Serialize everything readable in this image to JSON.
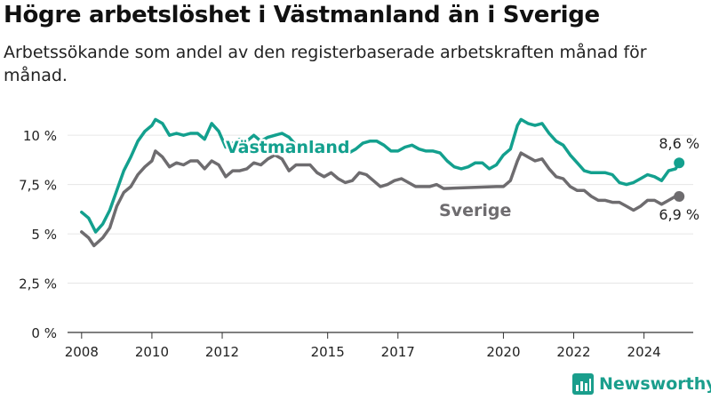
{
  "title": "Högre arbetslöshet i Västmanland än i Sverige",
  "subtitle": "Arbetssökande som andel av den registerbaserade arbetskraften månad för månad.",
  "brand": "Newsworthy",
  "colors": {
    "vastmanland": "#13a08e",
    "sverige": "#6e6c6f",
    "axis": "#333333",
    "grid": "#e6e6e6"
  },
  "chart_data": {
    "type": "line",
    "ylim": [
      0,
      11
    ],
    "xlim": [
      2007.6,
      2025.4
    ],
    "yticks": [
      0,
      2.5,
      5,
      7.5,
      10
    ],
    "ytick_labels": [
      "0 %",
      "2,5 %",
      "5 %",
      "7,5 %",
      "10 %"
    ],
    "xticks": [
      2008,
      2010,
      2012,
      2015,
      2017,
      2020,
      2022,
      2024
    ],
    "xtick_labels": [
      "2008",
      "2010",
      "2012",
      "2015",
      "2017",
      "2020",
      "2022",
      "2024"
    ],
    "series": [
      {
        "name": "Västmanland",
        "color": "#13a08e",
        "end_label": "8,6 %",
        "points": [
          [
            2008.0,
            6.1
          ],
          [
            2008.2,
            5.8
          ],
          [
            2008.4,
            5.1
          ],
          [
            2008.6,
            5.5
          ],
          [
            2008.8,
            6.2
          ],
          [
            2009.0,
            7.2
          ],
          [
            2009.2,
            8.2
          ],
          [
            2009.4,
            8.9
          ],
          [
            2009.6,
            9.7
          ],
          [
            2009.8,
            10.2
          ],
          [
            2010.0,
            10.5
          ],
          [
            2010.1,
            10.8
          ],
          [
            2010.3,
            10.6
          ],
          [
            2010.5,
            10.0
          ],
          [
            2010.7,
            10.1
          ],
          [
            2010.9,
            10.0
          ],
          [
            2011.1,
            10.1
          ],
          [
            2011.3,
            10.1
          ],
          [
            2011.5,
            9.8
          ],
          [
            2011.7,
            10.6
          ],
          [
            2011.9,
            10.2
          ],
          [
            2012.1,
            9.4
          ],
          [
            2012.3,
            9.6
          ],
          [
            2012.5,
            9.8
          ],
          [
            2012.7,
            9.7
          ],
          [
            2012.9,
            10.0
          ],
          [
            2013.1,
            9.7
          ],
          [
            2013.3,
            9.9
          ],
          [
            2013.5,
            10.0
          ],
          [
            2013.7,
            10.1
          ],
          [
            2013.9,
            9.9
          ],
          [
            2014.1,
            9.5
          ],
          [
            2014.3,
            9.5
          ],
          [
            2014.6,
            9.3
          ],
          [
            2014.8,
            9.5
          ],
          [
            2015.0,
            9.6
          ],
          [
            2015.2,
            9.6
          ],
          [
            2015.4,
            9.3
          ],
          [
            2015.6,
            9.1
          ],
          [
            2015.8,
            9.3
          ],
          [
            2016.0,
            9.6
          ],
          [
            2016.2,
            9.7
          ],
          [
            2016.4,
            9.7
          ],
          [
            2016.6,
            9.5
          ],
          [
            2016.8,
            9.2
          ],
          [
            2017.0,
            9.2
          ],
          [
            2017.2,
            9.4
          ],
          [
            2017.4,
            9.5
          ],
          [
            2017.6,
            9.3
          ],
          [
            2017.8,
            9.2
          ],
          [
            2018.0,
            9.2
          ],
          [
            2018.2,
            9.1
          ],
          [
            2018.4,
            8.7
          ],
          [
            2018.6,
            8.4
          ],
          [
            2018.8,
            8.3
          ],
          [
            2019.0,
            8.4
          ],
          [
            2019.2,
            8.6
          ],
          [
            2019.4,
            8.6
          ],
          [
            2019.6,
            8.3
          ],
          [
            2019.8,
            8.5
          ],
          [
            2020.0,
            9.0
          ],
          [
            2020.2,
            9.3
          ],
          [
            2020.4,
            10.5
          ],
          [
            2020.5,
            10.8
          ],
          [
            2020.7,
            10.6
          ],
          [
            2020.9,
            10.5
          ],
          [
            2021.1,
            10.6
          ],
          [
            2021.3,
            10.1
          ],
          [
            2021.5,
            9.7
          ],
          [
            2021.7,
            9.5
          ],
          [
            2021.9,
            9.0
          ],
          [
            2022.1,
            8.6
          ],
          [
            2022.3,
            8.2
          ],
          [
            2022.5,
            8.1
          ],
          [
            2022.7,
            8.1
          ],
          [
            2022.9,
            8.1
          ],
          [
            2023.1,
            8.0
          ],
          [
            2023.3,
            7.6
          ],
          [
            2023.5,
            7.5
          ],
          [
            2023.7,
            7.6
          ],
          [
            2023.9,
            7.8
          ],
          [
            2024.1,
            8.0
          ],
          [
            2024.3,
            7.9
          ],
          [
            2024.5,
            7.7
          ],
          [
            2024.7,
            8.2
          ],
          [
            2024.9,
            8.3
          ],
          [
            2025.0,
            8.6
          ]
        ]
      },
      {
        "name": "Sverige",
        "color": "#6e6c6f",
        "end_label": "6,9 %",
        "points": [
          [
            2008.0,
            5.1
          ],
          [
            2008.2,
            4.8
          ],
          [
            2008.35,
            4.4
          ],
          [
            2008.6,
            4.8
          ],
          [
            2008.8,
            5.3
          ],
          [
            2009.0,
            6.4
          ],
          [
            2009.2,
            7.1
          ],
          [
            2009.4,
            7.4
          ],
          [
            2009.6,
            8.0
          ],
          [
            2009.8,
            8.4
          ],
          [
            2010.0,
            8.7
          ],
          [
            2010.1,
            9.2
          ],
          [
            2010.3,
            8.9
          ],
          [
            2010.5,
            8.4
          ],
          [
            2010.7,
            8.6
          ],
          [
            2010.9,
            8.5
          ],
          [
            2011.1,
            8.7
          ],
          [
            2011.3,
            8.7
          ],
          [
            2011.5,
            8.3
          ],
          [
            2011.7,
            8.7
          ],
          [
            2011.9,
            8.5
          ],
          [
            2012.1,
            7.9
          ],
          [
            2012.3,
            8.2
          ],
          [
            2012.5,
            8.2
          ],
          [
            2012.7,
            8.3
          ],
          [
            2012.9,
            8.6
          ],
          [
            2013.1,
            8.5
          ],
          [
            2013.3,
            8.8
          ],
          [
            2013.5,
            9.0
          ],
          [
            2013.7,
            8.8
          ],
          [
            2013.9,
            8.2
          ],
          [
            2014.1,
            8.5
          ],
          [
            2014.3,
            8.5
          ],
          [
            2014.5,
            8.5
          ],
          [
            2014.7,
            8.1
          ],
          [
            2014.9,
            7.9
          ],
          [
            2015.1,
            8.1
          ],
          [
            2015.3,
            7.8
          ],
          [
            2015.5,
            7.6
          ],
          [
            2015.7,
            7.7
          ],
          [
            2015.9,
            8.1
          ],
          [
            2016.1,
            8.0
          ],
          [
            2016.3,
            7.7
          ],
          [
            2016.5,
            7.4
          ],
          [
            2016.7,
            7.5
          ],
          [
            2016.9,
            7.7
          ],
          [
            2017.1,
            7.8
          ],
          [
            2017.3,
            7.6
          ],
          [
            2017.5,
            7.4
          ],
          [
            2017.7,
            7.4
          ],
          [
            2017.9,
            7.4
          ],
          [
            2018.1,
            7.5
          ],
          [
            2018.3,
            7.3
          ],
          [
            2019.8,
            7.4
          ],
          [
            2020.0,
            7.4
          ],
          [
            2020.2,
            7.7
          ],
          [
            2020.4,
            8.7
          ],
          [
            2020.5,
            9.1
          ],
          [
            2020.7,
            8.9
          ],
          [
            2020.9,
            8.7
          ],
          [
            2021.1,
            8.8
          ],
          [
            2021.3,
            8.3
          ],
          [
            2021.5,
            7.9
          ],
          [
            2021.7,
            7.8
          ],
          [
            2021.9,
            7.4
          ],
          [
            2022.1,
            7.2
          ],
          [
            2022.3,
            7.2
          ],
          [
            2022.5,
            6.9
          ],
          [
            2022.7,
            6.7
          ],
          [
            2022.9,
            6.7
          ],
          [
            2023.1,
            6.6
          ],
          [
            2023.3,
            6.6
          ],
          [
            2023.5,
            6.4
          ],
          [
            2023.7,
            6.2
          ],
          [
            2023.9,
            6.4
          ],
          [
            2024.1,
            6.7
          ],
          [
            2024.3,
            6.7
          ],
          [
            2024.5,
            6.5
          ],
          [
            2024.7,
            6.7
          ],
          [
            2024.9,
            6.9
          ],
          [
            2025.0,
            6.9
          ]
        ]
      }
    ]
  }
}
